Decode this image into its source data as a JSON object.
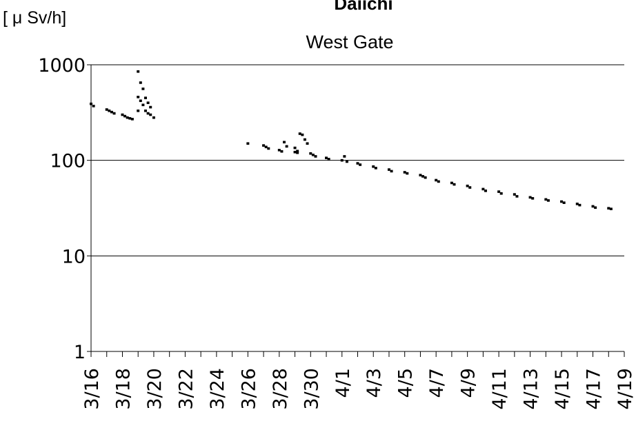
{
  "chart_data": {
    "type": "scatter",
    "title": "Daiichi",
    "subtitle": "West Gate",
    "ylabel": "[ μ Sv/h]",
    "yscale": "log",
    "ylim": [
      1,
      1000
    ],
    "yticks": [
      "1",
      "10",
      "100",
      "1000"
    ],
    "xlim": [
      "3/16",
      "4/19"
    ],
    "xticks": [
      "3/16",
      "3/18",
      "3/20",
      "3/22",
      "3/24",
      "3/26",
      "3/28",
      "3/30",
      "4/1",
      "4/3",
      "4/5",
      "4/7",
      "4/9",
      "4/11",
      "4/13",
      "4/15",
      "4/17",
      "4/19"
    ],
    "grid": "horizontal at major y ticks",
    "series": [
      {
        "marker_color": "#000000",
        "points": [
          [
            "3/16",
            390
          ],
          [
            "3/16",
            370
          ],
          [
            "3/17",
            340
          ],
          [
            "3/17",
            330
          ],
          [
            "3/17",
            320
          ],
          [
            "3/17",
            310
          ],
          [
            "3/18",
            300
          ],
          [
            "3/18",
            290
          ],
          [
            "3/18",
            280
          ],
          [
            "3/18",
            275
          ],
          [
            "3/18",
            270
          ],
          [
            "3/19",
            460
          ],
          [
            "3/19",
            420
          ],
          [
            "3/19",
            380
          ],
          [
            "3/19",
            330
          ],
          [
            "3/19",
            310
          ],
          [
            "3/19",
            300
          ],
          [
            "3/19",
            850
          ],
          [
            "3/19",
            650
          ],
          [
            "3/19",
            560
          ],
          [
            "3/19",
            450
          ],
          [
            "3/19",
            400
          ],
          [
            "3/19",
            360
          ],
          [
            "3/19",
            330
          ],
          [
            "3/20",
            280
          ],
          [
            "3/26",
            150
          ],
          [
            "3/27",
            143
          ],
          [
            "3/27",
            138
          ],
          [
            "3/27",
            133
          ],
          [
            "3/28",
            128
          ],
          [
            "3/28",
            124
          ],
          [
            "3/28",
            155
          ],
          [
            "3/28",
            140
          ],
          [
            "3/29",
            122
          ],
          [
            "3/29",
            120
          ],
          [
            "3/29",
            190
          ],
          [
            "3/29",
            185
          ],
          [
            "3/29",
            165
          ],
          [
            "3/29",
            150
          ],
          [
            "3/29",
            135
          ],
          [
            "3/29",
            125
          ],
          [
            "3/30",
            118
          ],
          [
            "3/30",
            114
          ],
          [
            "3/30",
            110
          ],
          [
            "3/31",
            106
          ],
          [
            "3/31",
            103
          ],
          [
            "4/1",
            100
          ],
          [
            "4/1",
            110
          ],
          [
            "4/1",
            97
          ],
          [
            "4/2",
            93
          ],
          [
            "4/2",
            90
          ],
          [
            "4/3",
            86
          ],
          [
            "4/3",
            83
          ],
          [
            "4/4",
            80
          ],
          [
            "4/4",
            77
          ],
          [
            "4/5",
            75
          ],
          [
            "4/5",
            73
          ],
          [
            "4/6",
            70
          ],
          [
            "4/6",
            68
          ],
          [
            "4/6",
            66
          ],
          [
            "4/7",
            62
          ],
          [
            "4/7",
            60
          ],
          [
            "4/8",
            58
          ],
          [
            "4/8",
            56
          ],
          [
            "4/9",
            54
          ],
          [
            "4/9",
            52
          ],
          [
            "4/10",
            50
          ],
          [
            "4/10",
            48
          ],
          [
            "4/11",
            47
          ],
          [
            "4/11",
            45
          ],
          [
            "4/12",
            44
          ],
          [
            "4/12",
            42
          ],
          [
            "4/13",
            41
          ],
          [
            "4/13",
            40
          ],
          [
            "4/14",
            39
          ],
          [
            "4/14",
            38
          ],
          [
            "4/15",
            37
          ],
          [
            "4/15",
            36
          ],
          [
            "4/16",
            35
          ],
          [
            "4/16",
            34
          ],
          [
            "4/17",
            33
          ],
          [
            "4/17",
            32
          ],
          [
            "4/18",
            31.5
          ],
          [
            "4/18",
            31
          ]
        ]
      }
    ]
  }
}
